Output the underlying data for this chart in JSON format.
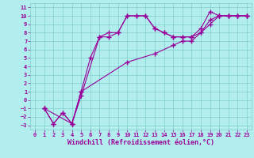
{
  "xlabel": "Windchill (Refroidissement éolien,°C)",
  "ylabel": "",
  "bg_color": "#b2eeee",
  "grid_color": "#80cccc",
  "line_color": "#990099",
  "xlim": [
    -0.5,
    23.5
  ],
  "ylim": [
    -3.5,
    11.5
  ],
  "xticks": [
    0,
    1,
    2,
    3,
    4,
    5,
    6,
    7,
    8,
    9,
    10,
    11,
    12,
    13,
    14,
    15,
    16,
    17,
    18,
    19,
    20,
    21,
    22,
    23
  ],
  "yticks": [
    -3,
    -2,
    -1,
    0,
    1,
    2,
    3,
    4,
    5,
    6,
    7,
    8,
    9,
    10,
    11
  ],
  "line1_x": [
    1,
    2,
    3,
    4,
    5,
    7,
    8,
    9,
    10,
    11,
    12,
    13,
    14,
    15,
    16,
    17,
    18,
    19,
    20,
    21,
    22,
    23
  ],
  "line1_y": [
    -1,
    -2.8,
    -1.5,
    -2.8,
    0.5,
    7.5,
    7.5,
    8.0,
    10.0,
    10.0,
    10.0,
    8.5,
    8.0,
    7.5,
    7.5,
    7.5,
    8.0,
    9.0,
    10.0,
    10.0,
    10.0,
    10.0
  ],
  "line2_x": [
    1,
    2,
    3,
    4,
    5,
    6,
    7,
    8,
    9,
    10,
    11,
    12,
    13,
    14,
    15,
    16,
    17,
    18,
    19,
    20,
    21,
    22,
    23
  ],
  "line2_y": [
    -1,
    -2.8,
    -1.5,
    -2.8,
    1.0,
    5.0,
    7.5,
    8.0,
    8.0,
    10.0,
    10.0,
    10.0,
    8.5,
    8.0,
    7.5,
    7.5,
    7.5,
    8.5,
    10.5,
    10.0,
    10.0,
    10.0,
    10.0
  ],
  "line3_x": [
    1,
    4,
    5,
    10,
    13,
    15,
    16,
    17,
    18,
    19,
    20,
    21,
    22,
    23
  ],
  "line3_y": [
    -1,
    -2.8,
    1.0,
    4.5,
    5.5,
    6.5,
    7.0,
    7.0,
    8.0,
    9.5,
    10.0,
    10.0,
    10.0,
    10.0
  ],
  "marker": "+",
  "markersize": 4,
  "linewidth": 0.8,
  "label_fontsize": 6,
  "tick_fontsize": 5
}
